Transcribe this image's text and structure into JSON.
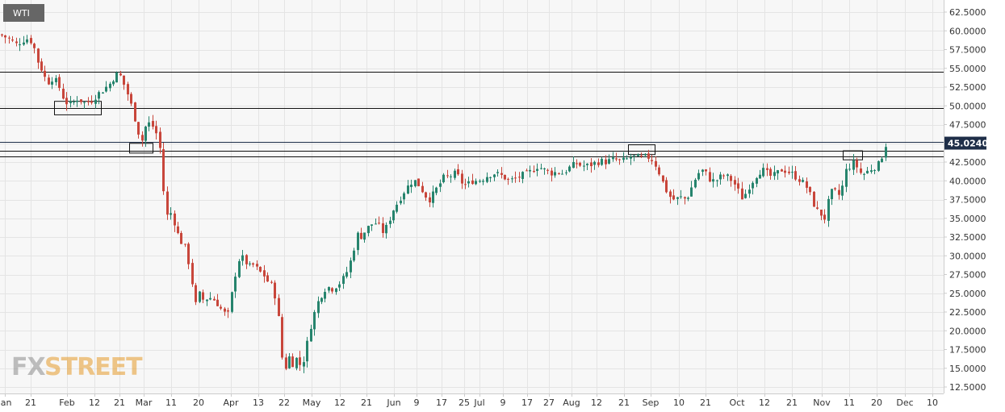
{
  "chart_data": {
    "type": "candlestick",
    "title": "WTI",
    "last_price": "45.0240",
    "ylim": [
      12.5,
      63.0
    ],
    "y_ticks": [
      "62.5000",
      "60.0000",
      "57.5000",
      "55.0000",
      "52.5000",
      "50.0000",
      "47.5000",
      "45.0000",
      "42.5000",
      "40.0000",
      "37.5000",
      "35.0000",
      "32.5000",
      "30.0000",
      "27.5000",
      "25.0000",
      "22.5000",
      "20.0000",
      "17.5000",
      "15.0000",
      "12.5000"
    ],
    "x_ticks": [
      "Jan",
      "21",
      "Feb",
      "12",
      "21",
      "Mar",
      "11",
      "20",
      "Apr",
      "13",
      "22",
      "May",
      "12",
      "21",
      "Jun",
      "9",
      "17",
      "25",
      "Jul",
      "9",
      "17",
      "27",
      "Aug",
      "12",
      "21",
      "Sep",
      "10",
      "21",
      "Oct",
      "12",
      "21",
      "Nov",
      "11",
      "20",
      "Dec",
      "10"
    ],
    "horizontal_levels": [
      54.5,
      49.7,
      45.2,
      44.0,
      43.2
    ],
    "zones": [
      {
        "x_from": 67,
        "x_to": 125,
        "y_from": 48.8,
        "y_to": 50.6
      },
      {
        "x_from": 160,
        "x_to": 189,
        "y_from": 43.7,
        "y_to": 45.0
      },
      {
        "x_from": 778,
        "x_to": 811,
        "y_from": 43.5,
        "y_to": 44.8
      },
      {
        "x_from": 1044,
        "x_to": 1068,
        "y_from": 42.8,
        "y_to": 44.0
      }
    ],
    "series": [
      {
        "type": "candlestick",
        "nodes": [
          [
            0,
            59.5
          ],
          [
            10,
            59.0
          ],
          [
            20,
            58.2
          ],
          [
            32,
            59.0
          ],
          [
            40,
            58.5
          ],
          [
            46,
            56.0
          ],
          [
            53,
            54.5
          ],
          [
            58,
            53.0
          ],
          [
            66,
            53.8
          ],
          [
            73,
            52.5
          ],
          [
            80,
            50.5
          ],
          [
            88,
            50.2
          ],
          [
            96,
            51.0
          ],
          [
            104,
            50.4
          ],
          [
            112,
            50.6
          ],
          [
            120,
            51.5
          ],
          [
            128,
            52.2
          ],
          [
            136,
            53.0
          ],
          [
            142,
            54.0
          ],
          [
            147,
            54.4
          ],
          [
            152,
            53.2
          ],
          [
            158,
            51.5
          ],
          [
            164,
            49.5
          ],
          [
            170,
            46.8
          ],
          [
            175,
            45.2
          ],
          [
            180,
            47.2
          ],
          [
            186,
            47.8
          ],
          [
            193,
            46.5
          ],
          [
            199,
            43.8
          ],
          [
            201,
            42.0
          ],
          [
            204,
            34.0
          ],
          [
            208,
            36.0
          ],
          [
            213,
            35.5
          ],
          [
            218,
            33.5
          ],
          [
            223,
            32.0
          ],
          [
            228,
            31.5
          ],
          [
            233,
            29.5
          ],
          [
            236,
            27.0
          ],
          [
            239,
            26.0
          ],
          [
            243,
            23.0
          ],
          [
            247,
            25.0
          ],
          [
            252,
            24.0
          ],
          [
            258,
            24.5
          ],
          [
            264,
            24.2
          ],
          [
            270,
            23.5
          ],
          [
            276,
            22.5
          ],
          [
            282,
            22.0
          ],
          [
            287,
            25.0
          ],
          [
            292,
            28.0
          ],
          [
            297,
            30.0
          ],
          [
            302,
            29.5
          ],
          [
            308,
            28.5
          ],
          [
            314,
            28.8
          ],
          [
            320,
            28.0
          ],
          [
            326,
            27.5
          ],
          [
            332,
            26.5
          ],
          [
            337,
            26.0
          ],
          [
            342,
            24.0
          ],
          [
            346,
            20.5
          ],
          [
            349,
            16.5
          ],
          [
            353,
            15.0
          ],
          [
            358,
            16.5
          ],
          [
            363,
            15.5
          ],
          [
            368,
            16.5
          ],
          [
            373,
            15.0
          ],
          [
            378,
            17.0
          ],
          [
            383,
            20.0
          ],
          [
            388,
            22.0
          ],
          [
            394,
            24.0
          ],
          [
            399,
            25.0
          ],
          [
            405,
            26.0
          ],
          [
            410,
            25.5
          ],
          [
            416,
            26.0
          ],
          [
            422,
            26.5
          ],
          [
            428,
            27.5
          ],
          [
            433,
            29.0
          ],
          [
            438,
            31.0
          ],
          [
            443,
            33.0
          ],
          [
            448,
            32.5
          ],
          [
            453,
            33.5
          ],
          [
            458,
            34.0
          ],
          [
            463,
            34.5
          ],
          [
            469,
            34.0
          ],
          [
            475,
            33.0
          ],
          [
            481,
            34.5
          ],
          [
            486,
            36.0
          ],
          [
            492,
            37.0
          ],
          [
            497,
            38.0
          ],
          [
            503,
            39.0
          ],
          [
            509,
            39.8
          ],
          [
            515,
            40.0
          ],
          [
            521,
            39.0
          ],
          [
            527,
            38.0
          ],
          [
            532,
            37.5
          ],
          [
            538,
            38.5
          ],
          [
            544,
            39.5
          ],
          [
            550,
            40.5
          ],
          [
            556,
            40.5
          ],
          [
            562,
            41.0
          ],
          [
            568,
            40.5
          ],
          [
            573,
            39.5
          ],
          [
            579,
            39.5
          ],
          [
            585,
            40.0
          ],
          [
            591,
            40.0
          ],
          [
            598,
            40.3
          ],
          [
            605,
            40.8
          ],
          [
            612,
            41.0
          ],
          [
            618,
            40.8
          ],
          [
            624,
            40.5
          ],
          [
            630,
            40.0
          ],
          [
            636,
            40.2
          ],
          [
            642,
            40.5
          ],
          [
            648,
            40.8
          ],
          [
            654,
            41.0
          ],
          [
            660,
            41.5
          ],
          [
            666,
            42.0
          ],
          [
            672,
            41.5
          ],
          [
            678,
            41.3
          ],
          [
            684,
            41.0
          ],
          [
            690,
            41.2
          ],
          [
            697,
            41.0
          ],
          [
            702,
            41.5
          ],
          [
            708,
            42.0
          ],
          [
            714,
            42.3
          ],
          [
            720,
            42.0
          ],
          [
            727,
            42.0
          ],
          [
            733,
            42.2
          ],
          [
            739,
            42.5
          ],
          [
            745,
            42.6
          ],
          [
            751,
            42.5
          ],
          [
            757,
            42.8
          ],
          [
            763,
            42.8
          ],
          [
            769,
            42.6
          ],
          [
            775,
            42.8
          ],
          [
            781,
            43.2
          ],
          [
            787,
            43.2
          ],
          [
            793,
            43.0
          ],
          [
            799,
            43.2
          ],
          [
            805,
            43.1
          ],
          [
            810,
            42.5
          ],
          [
            815,
            41.5
          ],
          [
            820,
            40.0
          ],
          [
            826,
            38.5
          ],
          [
            832,
            37.5
          ],
          [
            838,
            37.6
          ],
          [
            844,
            37.8
          ],
          [
            850,
            37.5
          ],
          [
            856,
            39.0
          ],
          [
            862,
            40.5
          ],
          [
            868,
            41.5
          ],
          [
            874,
            41.0
          ],
          [
            880,
            40.0
          ],
          [
            886,
            40.0
          ],
          [
            892,
            40.5
          ],
          [
            898,
            40.7
          ],
          [
            904,
            40.3
          ],
          [
            910,
            39.5
          ],
          [
            915,
            38.5
          ],
          [
            920,
            37.5
          ],
          [
            926,
            39.0
          ],
          [
            932,
            40.0
          ],
          [
            938,
            41.0
          ],
          [
            944,
            41.5
          ],
          [
            950,
            41.0
          ],
          [
            956,
            40.5
          ],
          [
            962,
            41.0
          ],
          [
            968,
            41.5
          ],
          [
            974,
            41.3
          ],
          [
            980,
            41.0
          ],
          [
            986,
            40.5
          ],
          [
            992,
            40.0
          ],
          [
            997,
            39.5
          ],
          [
            1002,
            38.5
          ],
          [
            1007,
            37.0
          ],
          [
            1012,
            36.0
          ],
          [
            1017,
            35.5
          ],
          [
            1021,
            35.0
          ],
          [
            1025,
            37.0
          ],
          [
            1030,
            38.5
          ],
          [
            1035,
            38.5
          ],
          [
            1040,
            38.0
          ],
          [
            1044,
            39.5
          ],
          [
            1048,
            41.5
          ],
          [
            1053,
            42.0
          ],
          [
            1058,
            42.5
          ],
          [
            1063,
            41.5
          ],
          [
            1067,
            40.8
          ],
          [
            1072,
            41.0
          ],
          [
            1077,
            41.5
          ],
          [
            1082,
            41.8
          ],
          [
            1087,
            42.0
          ],
          [
            1092,
            43.2
          ],
          [
            1096,
            44.8
          ]
        ]
      }
    ]
  }
}
